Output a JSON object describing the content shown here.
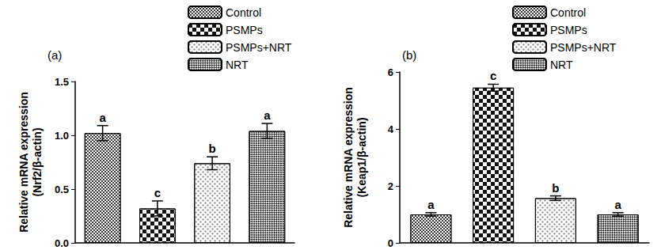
{
  "chart_data": [
    {
      "type": "bar",
      "title": "(a)",
      "y_label": "Relative mRNA expression\n(Nrf2/β-actin)",
      "categories": [
        "Control",
        "PSMPs",
        "PSMPs+NRT",
        "NRT"
      ],
      "values": [
        1.02,
        0.32,
        0.74,
        1.04
      ],
      "errors": [
        0.07,
        0.07,
        0.06,
        0.07
      ],
      "annotations": [
        "a",
        "c",
        "b",
        "a"
      ],
      "colors": [
        "#3a3a3a",
        "#111111",
        "#ffffff",
        "#ffffff"
      ],
      "ylim": [
        0,
        1.5
      ],
      "yticks": [
        {
          "value": 0,
          "label": "0.0"
        },
        0.5,
        {
          "value": 1,
          "label": "1.0"
        },
        1.5
      ],
      "grid": false,
      "legend": "top",
      "tick_labels": "y"
    },
    {
      "type": "bar",
      "title": "(b)",
      "y_label": "Relative mRNA expression\n(Keap1/β-actin)",
      "categories": [
        "Control",
        "PSMPs",
        "PSMPs+NRT",
        "NRT"
      ],
      "values": [
        1.0,
        5.45,
        1.57,
        1.0
      ],
      "errors": [
        0.06,
        0.12,
        0.08,
        0.06
      ],
      "annotations": [
        "a",
        "c",
        "b",
        "a"
      ],
      "colors": [
        "#3a3a3a",
        "#111111",
        "#ffffff",
        "#ffffff"
      ],
      "ylim": [
        0,
        6
      ],
      "yticks": [
        0,
        2,
        4,
        6
      ],
      "grid": false,
      "legend": "top",
      "tick_labels": "y"
    }
  ]
}
